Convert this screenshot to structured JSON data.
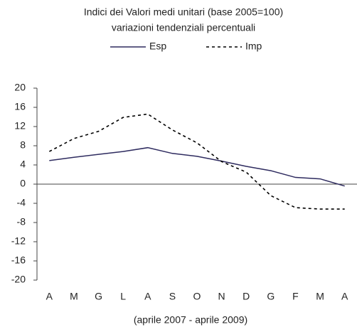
{
  "chart_data": {
    "type": "line",
    "title": [
      "Indici dei Valori medi unitari (base 2005=100)",
      "variazioni tendenziali percentuali"
    ],
    "x_label": "(aprile 2007 - aprile 2009)",
    "categories": [
      "A",
      "M",
      "G",
      "L",
      "A",
      "S",
      "O",
      "N",
      "D",
      "G",
      "F",
      "M",
      "A"
    ],
    "series": [
      {
        "name": "Esp",
        "color": "#2e2b5f",
        "dash": false,
        "values": [
          4.9,
          5.6,
          6.2,
          6.8,
          7.6,
          6.4,
          5.8,
          4.8,
          3.7,
          2.8,
          1.4,
          1.1,
          -0.4
        ]
      },
      {
        "name": "Imp",
        "color": "#000000",
        "dash": true,
        "values": [
          6.8,
          9.5,
          11,
          13.9,
          14.6,
          11.3,
          8.6,
          4.7,
          2.5,
          -2.4,
          -4.9,
          -5.2,
          -5.2
        ]
      }
    ],
    "ylim": [
      -20,
      20
    ],
    "yticks": [
      -20,
      -16,
      -12,
      -8,
      -4,
      0,
      4,
      8,
      12,
      16,
      20
    ],
    "legend": "top"
  }
}
